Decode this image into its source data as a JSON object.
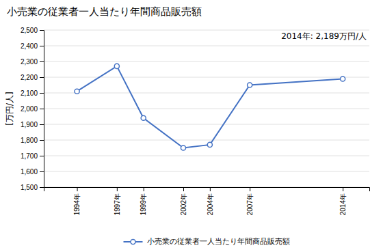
{
  "chart_data": {
    "type": "line",
    "title": "小売業の従業者一人当たり年間商品販売額",
    "ylabel": "[万円/人]",
    "annotation": "2014年: 2,189万円/人",
    "x": [
      1994,
      1997,
      1999,
      2002,
      2004,
      2007,
      2014
    ],
    "xlim": [
      1991.5,
      2016
    ],
    "xticks": [
      {
        "value": 1994,
        "label": "1994年"
      },
      {
        "value": 1997,
        "label": "1997年"
      },
      {
        "value": 1999,
        "label": "1999年"
      },
      {
        "value": 2002,
        "label": "2002年"
      },
      {
        "value": 2004,
        "label": "2004年"
      },
      {
        "value": 2007,
        "label": "2007年"
      },
      {
        "value": 2014,
        "label": "2014年"
      }
    ],
    "ylim": [
      1500,
      2500
    ],
    "yticks": [
      {
        "value": 1500,
        "label": "1,500"
      },
      {
        "value": 1600,
        "label": "1,600"
      },
      {
        "value": 1700,
        "label": "1,700"
      },
      {
        "value": 1800,
        "label": "1,800"
      },
      {
        "value": 1900,
        "label": "1,900"
      },
      {
        "value": 2000,
        "label": "2,000"
      },
      {
        "value": 2100,
        "label": "2,100"
      },
      {
        "value": 2200,
        "label": "2,200"
      },
      {
        "value": 2300,
        "label": "2,300"
      },
      {
        "value": 2400,
        "label": "2,400"
      },
      {
        "value": 2500,
        "label": "2,500"
      }
    ],
    "grid": true,
    "legend": "bottom",
    "series": [
      {
        "name": "小売業の従業者一人当たり年間商品販売額",
        "color": "#4472C4",
        "marker": "circle",
        "values": [
          2110,
          2270,
          1940,
          1750,
          1770,
          2150,
          2189
        ]
      }
    ]
  }
}
